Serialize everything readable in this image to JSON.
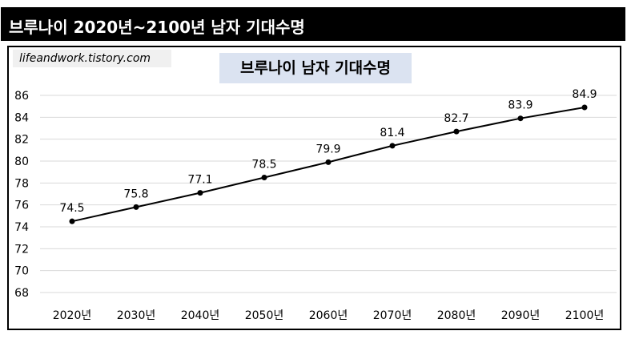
{
  "header": {
    "title": "브루나이 2020년~2100년 남자 기대수명"
  },
  "watermark": "lifeandwork.tistory.com",
  "chart_data": {
    "type": "line",
    "title": "브루나이 남자 기대수명",
    "categories": [
      "2020년",
      "2030년",
      "2040년",
      "2050년",
      "2060년",
      "2070년",
      "2080년",
      "2090년",
      "2100년"
    ],
    "series": [
      {
        "values": [
          74.5,
          75.8,
          77.1,
          78.5,
          79.9,
          81.4,
          82.7,
          83.9,
          84.9
        ]
      }
    ],
    "data_labels": [
      "74.5",
      "75.8",
      "77.1",
      "78.5",
      "79.9",
      "81.4",
      "82.7",
      "83.9",
      "84.9"
    ],
    "yticks": [
      "68",
      "70",
      "72",
      "74",
      "76",
      "78",
      "80",
      "82",
      "84",
      "86"
    ],
    "ylim": [
      68,
      86
    ],
    "xlabel": "",
    "ylabel": "",
    "grid": true,
    "line_color": "#000000",
    "grid_color": "#d9d9d9"
  }
}
